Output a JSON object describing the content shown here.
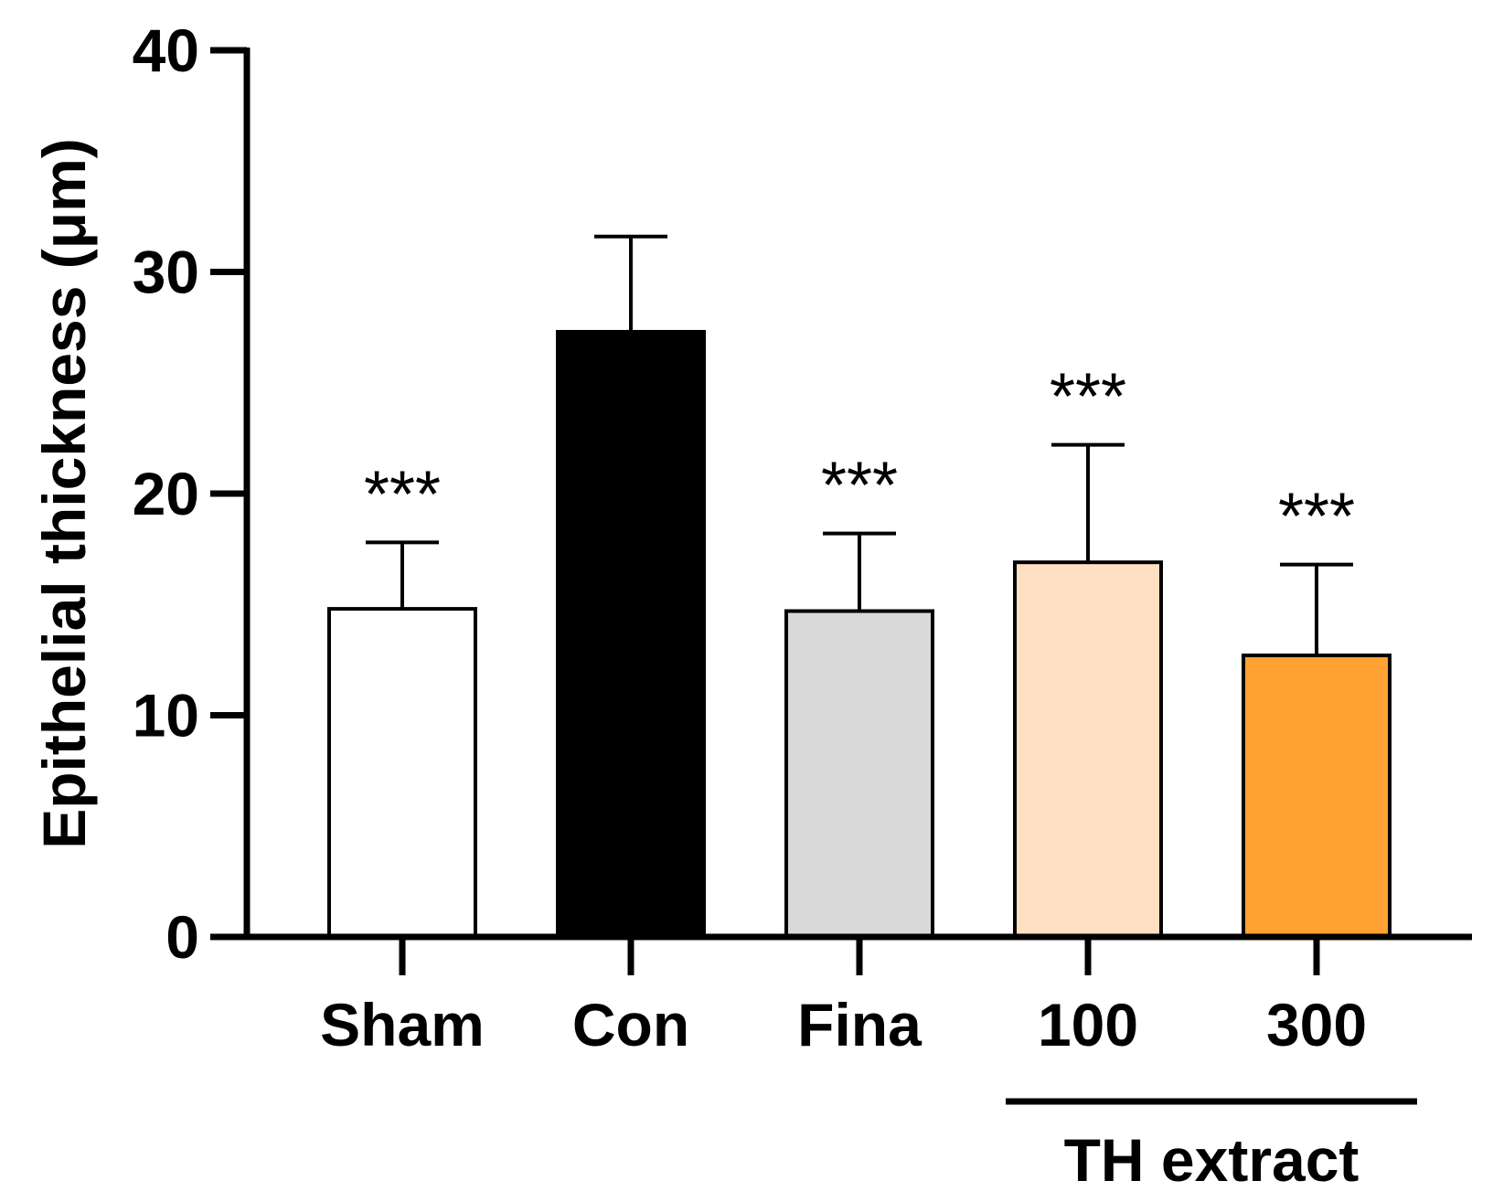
{
  "chart_data": {
    "type": "bar",
    "title": "",
    "xlabel": "",
    "ylabel": "Epithelial thickness (μm)",
    "ylim": [
      0,
      40
    ],
    "yticks": [
      "0",
      "10",
      "20",
      "30",
      "40"
    ],
    "categories": [
      "Sham",
      "Con",
      "Fina",
      "100",
      "300"
    ],
    "values": [
      14.8,
      27.3,
      14.7,
      16.9,
      12.7
    ],
    "errors": [
      3.0,
      4.3,
      3.5,
      5.3,
      4.1
    ],
    "significance": [
      "***",
      "",
      "***",
      "***",
      "***"
    ],
    "colors": [
      "#ffffff",
      "#000000",
      "#d9d9d9",
      "#ffe0c2",
      "#ffa133"
    ],
    "group": {
      "label": "TH extract",
      "categories": [
        "100",
        "300"
      ]
    }
  }
}
